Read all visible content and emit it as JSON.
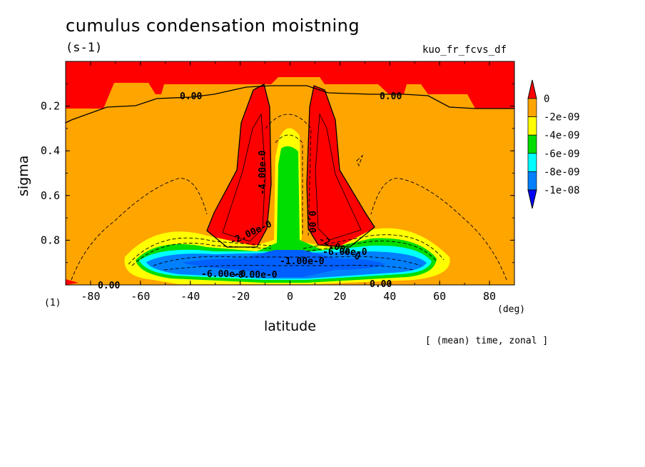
{
  "title": "cumulus condensation moistning",
  "units": "(s-1)",
  "variable": "kuo_fr_fcvs_df",
  "panel_id": "(1)",
  "x_unit": "(deg)",
  "footnote": "[ (mean) time, zonal ]",
  "chart_data": {
    "type": "contour",
    "xlabel": "latitude",
    "ylabel": "sigma",
    "xlim": [
      -90,
      90
    ],
    "ylim": [
      1.0,
      0.0
    ],
    "x_ticks": [
      -80,
      -60,
      -40,
      -20,
      0,
      20,
      40,
      60,
      80
    ],
    "y_ticks": [
      0.2,
      0.4,
      0.6,
      0.8
    ],
    "colorbar": {
      "levels": [
        "0",
        "-2e-09",
        "-4e-09",
        "-6e-09",
        "-8e-09",
        "-1e-08"
      ],
      "colors": [
        "#ff0000",
        "#ffa500",
        "#ffff00",
        "#00dd00",
        "#00ffff",
        "#0080ff",
        "#0000ff"
      ]
    },
    "contour_labels": [
      "0.00",
      "0.00",
      "0.00",
      "0.00",
      "0.00",
      "-4.00e-0",
      "-2.00e-0",
      "-2.00e-0",
      "-1.00e-0",
      "-6.00e-0",
      "-8.00e-0",
      "-6.00e-0"
    ]
  }
}
